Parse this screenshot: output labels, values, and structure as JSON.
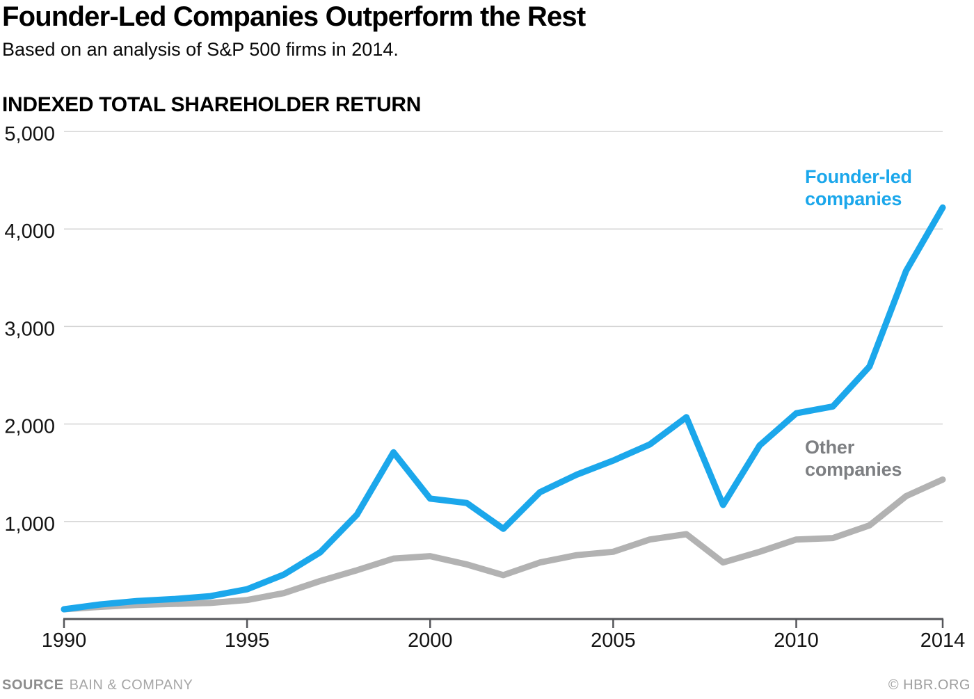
{
  "header": {
    "title": "Founder-Led Companies Outperform the Rest",
    "subtitle": "Based on an analysis of S&P 500 firms in 2014."
  },
  "chart_data": {
    "type": "line",
    "title": "Founder-Led Companies Outperform the Rest",
    "subtitle": "Based on an analysis of S&P 500 firms in 2014.",
    "ylabel": "INDEXED TOTAL SHAREHOLDER RETURN",
    "xlabel": "",
    "xlim": [
      1990,
      2014
    ],
    "ylim": [
      0,
      5000
    ],
    "grid": "horizontal gridlines only",
    "legend_position": "inline labels at right of plot",
    "x": [
      1990,
      1991,
      1992,
      1993,
      1994,
      1995,
      1996,
      1997,
      1998,
      1999,
      2000,
      2001,
      2002,
      2003,
      2004,
      2005,
      2006,
      2007,
      2008,
      2009,
      2010,
      2011,
      2012,
      2013,
      2014
    ],
    "series": [
      {
        "name": "Founder-led companies",
        "color": "#1BA7EB",
        "values": [
          100,
          150,
          185,
          205,
          235,
          305,
          455,
          685,
          1070,
          1710,
          1235,
          1190,
          925,
          1300,
          1480,
          1625,
          1790,
          2070,
          1170,
          1780,
          2110,
          2180,
          2590,
          3570,
          4220
        ]
      },
      {
        "name": "Other companies",
        "color": "#B2B2B2",
        "values": [
          100,
          125,
          145,
          155,
          165,
          195,
          265,
          390,
          500,
          620,
          645,
          560,
          450,
          580,
          655,
          690,
          815,
          870,
          580,
          690,
          815,
          830,
          960,
          1260,
          1430
        ]
      }
    ],
    "x_ticks": [
      {
        "value": 1990,
        "label": "1990"
      },
      {
        "value": 1995,
        "label": "1995"
      },
      {
        "value": 2000,
        "label": "2000"
      },
      {
        "value": 2005,
        "label": "2005"
      },
      {
        "value": 2010,
        "label": "2010"
      },
      {
        "value": 2014,
        "label": "2014"
      }
    ],
    "y_ticks": [
      {
        "value": 1000,
        "label": "1,000"
      },
      {
        "value": 2000,
        "label": "2,000"
      },
      {
        "value": 3000,
        "label": "3,000"
      },
      {
        "value": 4000,
        "label": "4,000"
      },
      {
        "value": 5000,
        "label": "5,000"
      }
    ],
    "colors": {
      "founder_led_line": "#1BA7EB",
      "other_line": "#B2B2B2",
      "other_label_text": "#7D7F82",
      "gridline": "#D4D4D4",
      "axis": "#55565A",
      "tick_text": "#131313"
    }
  },
  "footer": {
    "source_label": "SOURCE",
    "source_value": "BAIN & COMPANY",
    "credit": "© HBR.ORG"
  }
}
